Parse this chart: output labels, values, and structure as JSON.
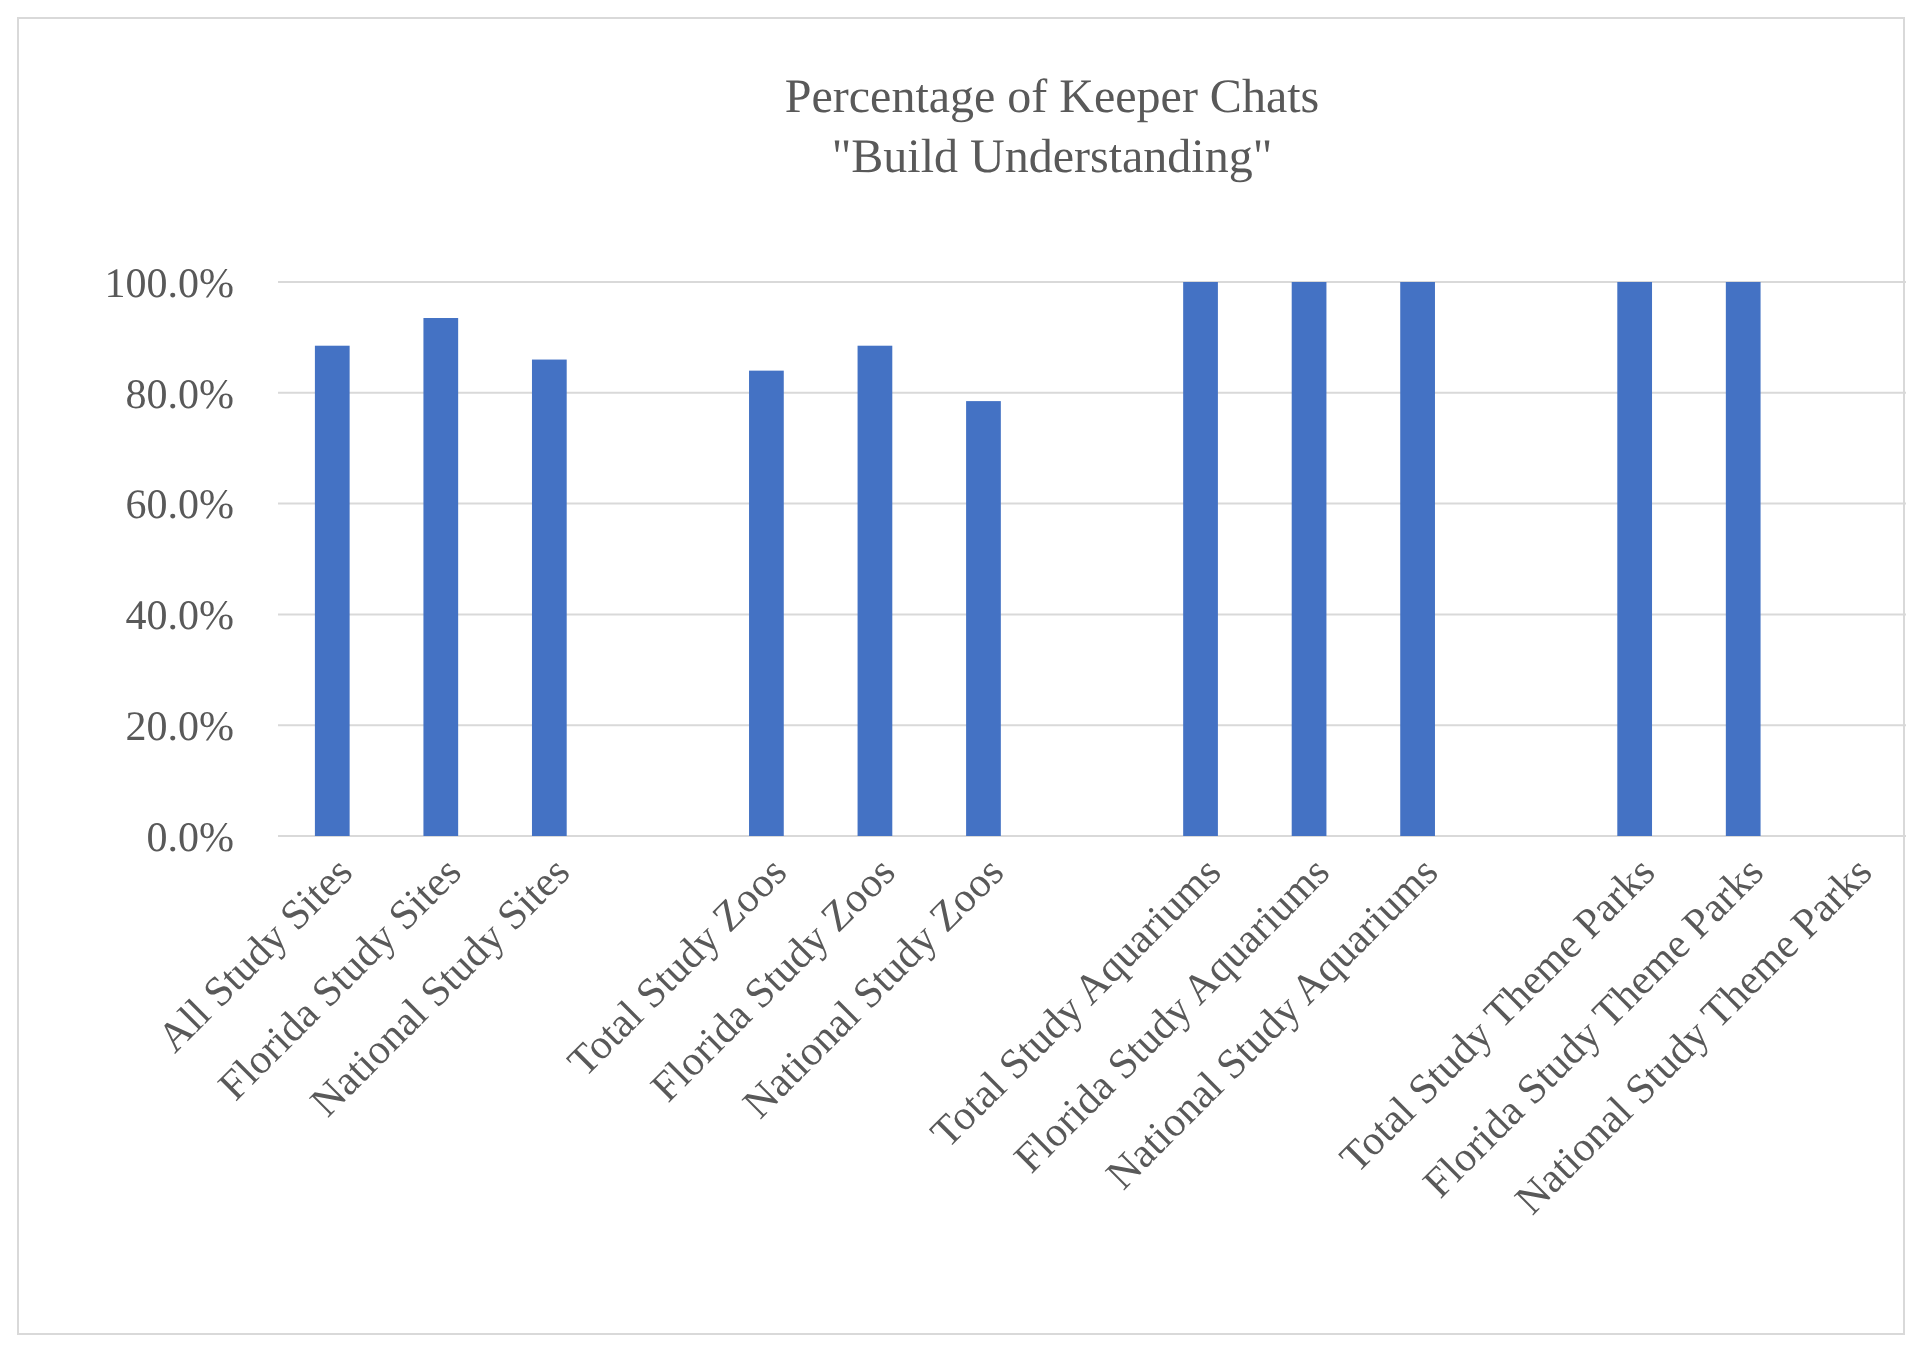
{
  "chart_data": {
    "type": "bar",
    "title": "Percentage of Keeper Chats\n\"Build Understanding\"",
    "categories": [
      "All Study Sites",
      "Florida Study Sites",
      "National Study Sites",
      null,
      "Total Study Zoos",
      "Florida Study Zoos",
      "National Study Zoos",
      null,
      "Total Study Aquariums",
      "Florida Study Aquariums",
      "National Study Aquariums",
      null,
      "Total Study Theme Parks",
      "Florida Study Theme Parks",
      "National Study Theme Parks"
    ],
    "values": [
      88.5,
      93.5,
      86,
      null,
      84,
      88.5,
      78.5,
      null,
      100,
      100,
      100,
      null,
      100,
      100,
      null
    ],
    "color": "#4472c4",
    "ylim": [
      0,
      100
    ],
    "yticks": [
      {
        "value": 0,
        "label": "0.0%"
      },
      {
        "value": 20,
        "label": "20.0%"
      },
      {
        "value": 40,
        "label": "40.0%"
      },
      {
        "value": 60,
        "label": "60.0%"
      },
      {
        "value": 80,
        "label": "80.0%"
      },
      {
        "value": 100,
        "label": "100.0%"
      }
    ],
    "grid": "y"
  }
}
